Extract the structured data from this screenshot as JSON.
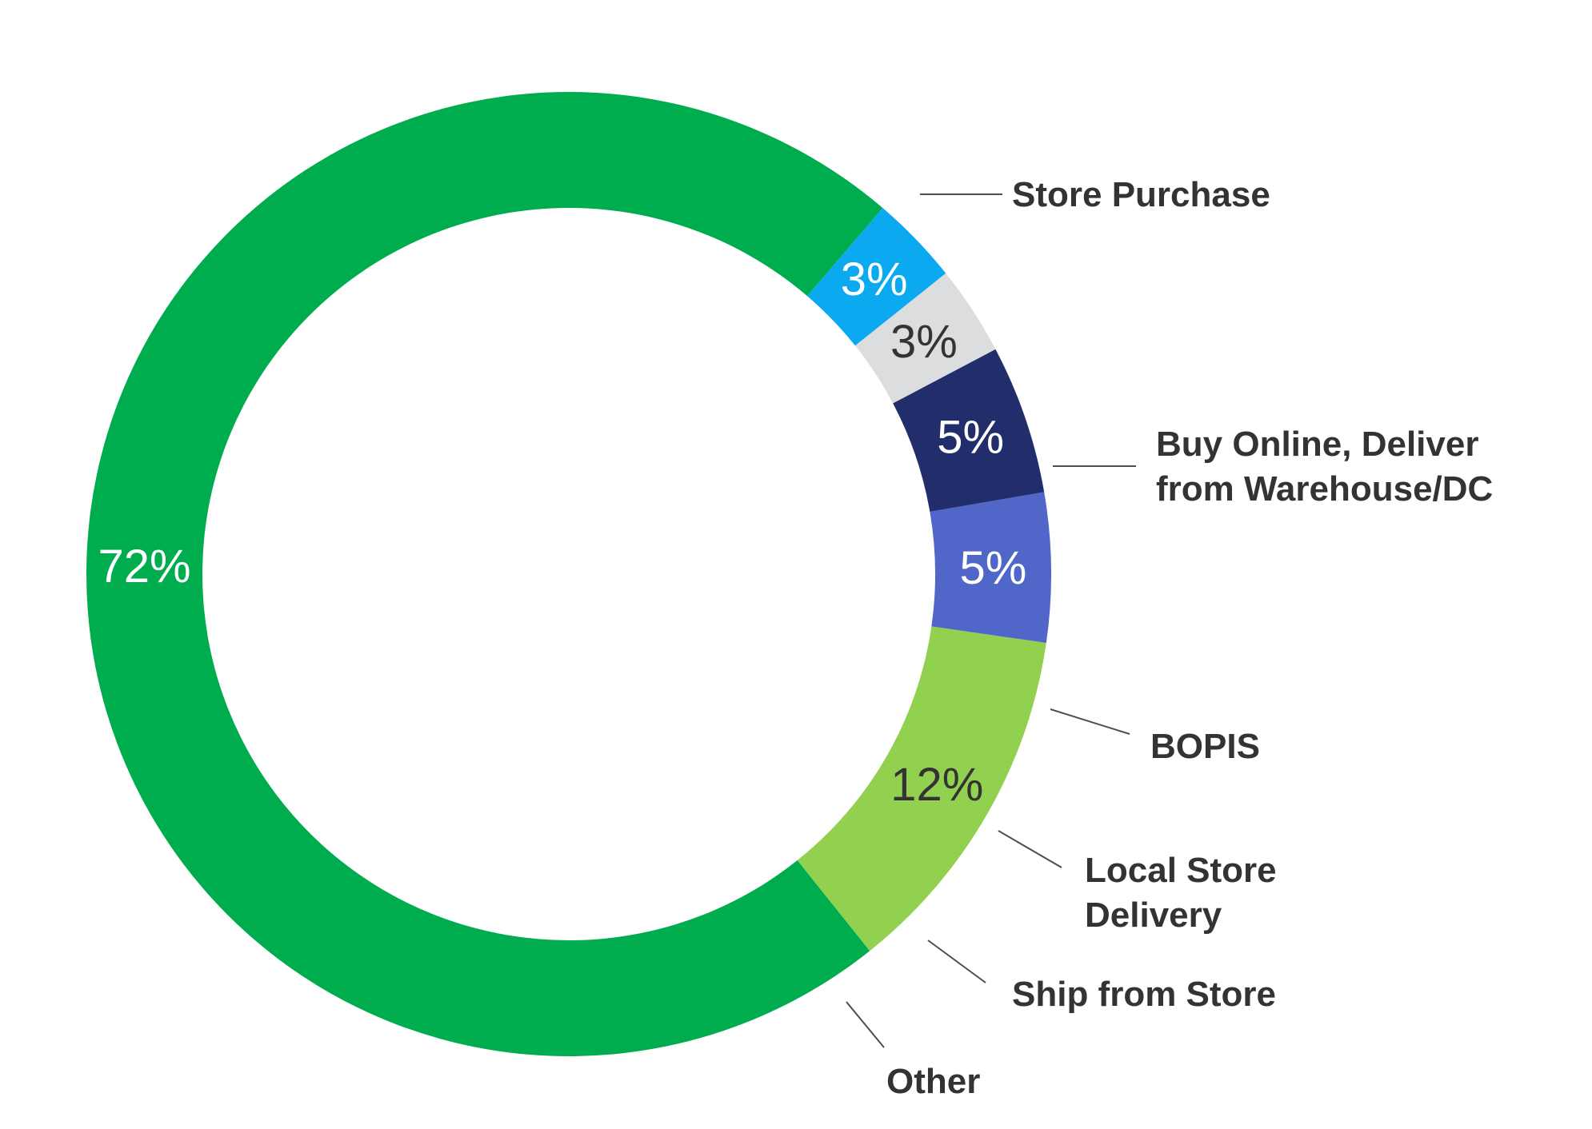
{
  "chart_data": {
    "type": "pie",
    "donut": true,
    "title": "",
    "legend": "none",
    "slices": [
      {
        "label": "Store Purchase",
        "value": 72,
        "value_label": "72%",
        "color": "#00AD4E",
        "label_color": "#FFFFFF"
      },
      {
        "label": "Buy Online, Deliver from Warehouse/DC",
        "label_lines": [
          "Buy Online, Deliver",
          "from Warehouse/DC"
        ],
        "value": 12,
        "value_label": "12%",
        "color": "#92D050",
        "label_color": "#333333"
      },
      {
        "label": "BOPIS",
        "value": 5,
        "value_label": "5%",
        "color": "#5066C8",
        "label_color": "#FFFFFF"
      },
      {
        "label": "Local Store Delivery",
        "label_lines": [
          "Local Store",
          "Delivery"
        ],
        "value": 5,
        "value_label": "5%",
        "color": "#222E6B",
        "label_color": "#FFFFFF"
      },
      {
        "label": "Ship from Store",
        "value": 3,
        "value_label": "3%",
        "color": "#DCDDDE",
        "label_color": "#333333"
      },
      {
        "label": "Other",
        "value": 3,
        "value_label": "3%",
        "color": "#0AA9F0",
        "label_color": "#FFFFFF"
      }
    ]
  }
}
